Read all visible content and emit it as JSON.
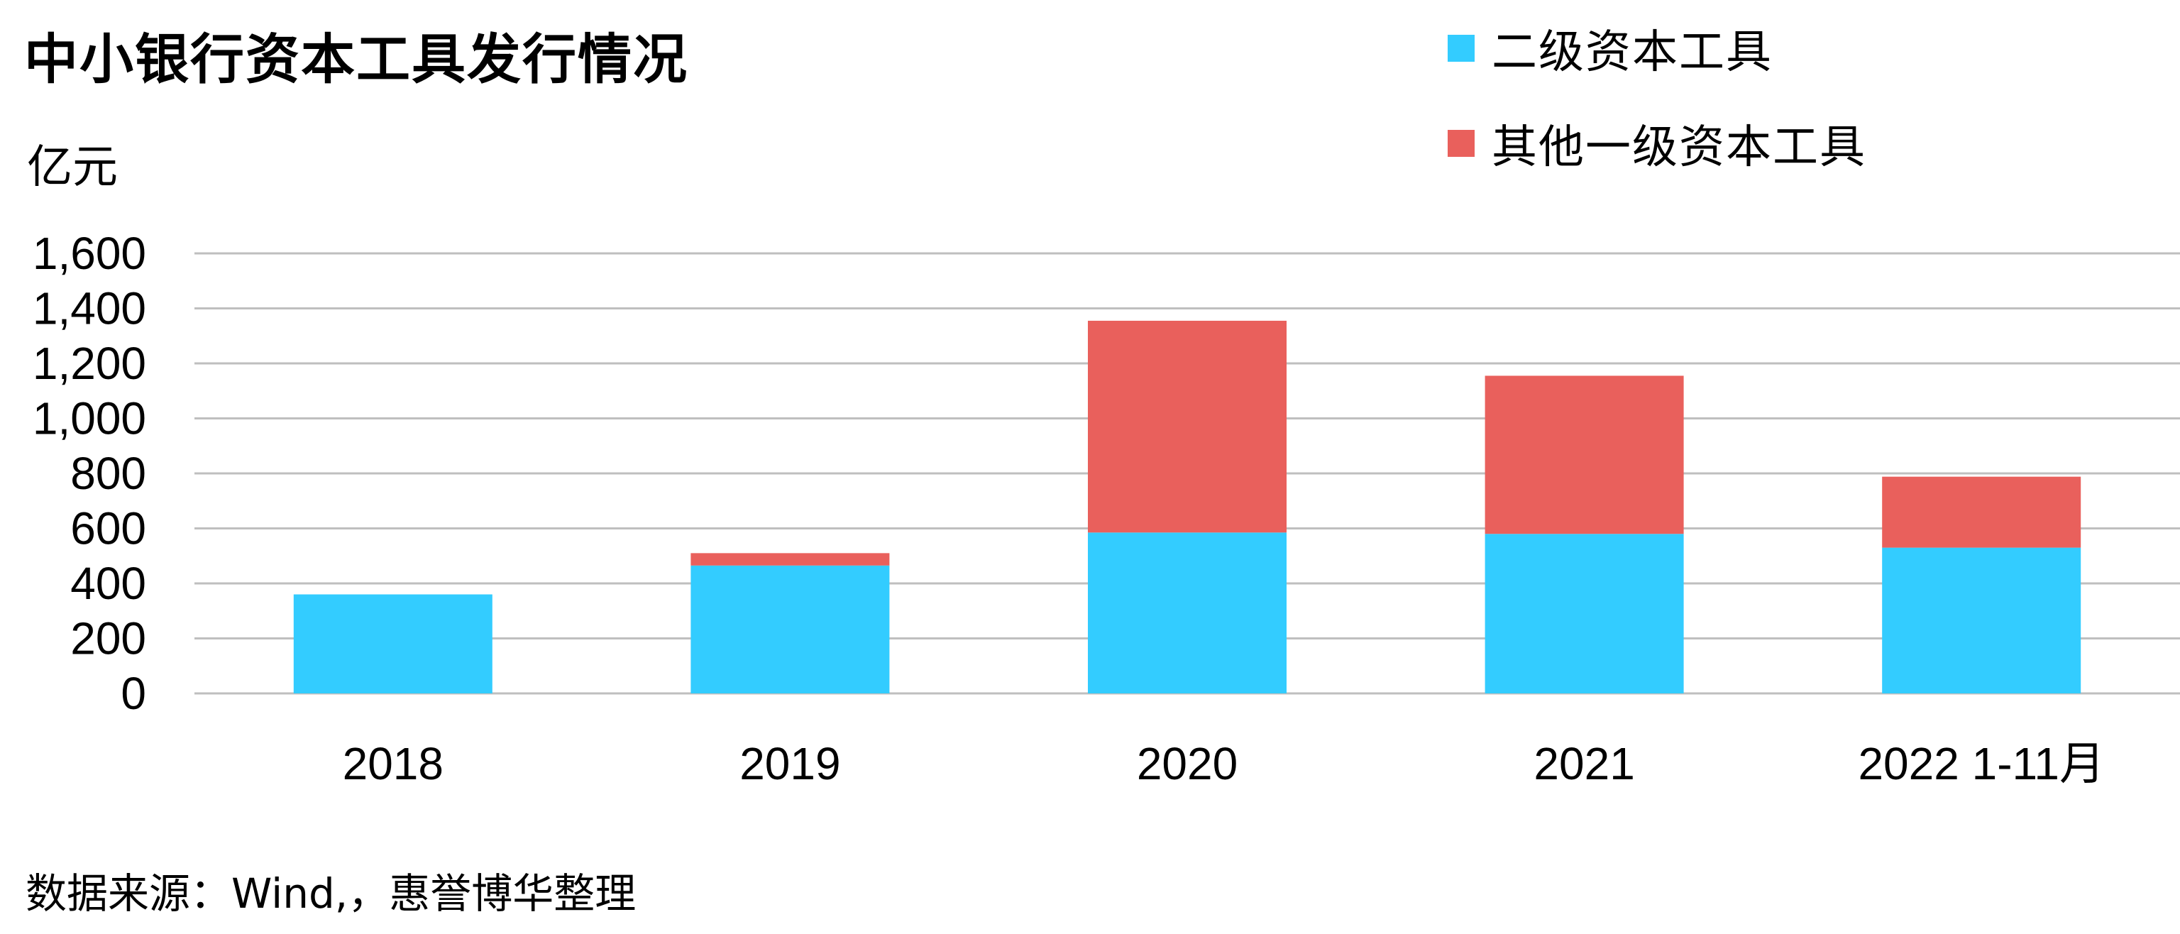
{
  "header": {
    "title": "中小银行资本工具发行情况",
    "unit": "亿元"
  },
  "legend": {
    "items": [
      {
        "label": "二级资本工具",
        "color": "#33CCFF"
      },
      {
        "label": "其他一级资本工具",
        "color": "#E9605C"
      }
    ]
  },
  "footer": {
    "source": "数据来源：Wind,，惠誉博华整理"
  },
  "colors": {
    "grid": "#BFBFBF",
    "axis": "#BFBFBF",
    "text": "#000000"
  },
  "chart_data": {
    "type": "bar",
    "stacked": true,
    "title": "中小银行资本工具发行情况",
    "ylabel": "亿元",
    "xlabel": "",
    "categories": [
      "2018",
      "2019",
      "2020",
      "2021",
      "2022 1-11月"
    ],
    "series": [
      {
        "name": "二级资本工具",
        "color": "#33CCFF",
        "values": [
          360,
          465,
          585,
          580,
          530
        ]
      },
      {
        "name": "其他一级资本工具",
        "color": "#E9605C",
        "values": [
          0,
          45,
          770,
          575,
          258
        ]
      }
    ],
    "ylim": [
      0,
      1600
    ],
    "yticks": [
      0,
      200,
      400,
      600,
      800,
      1000,
      1200,
      1400,
      1600
    ],
    "ytick_labels": [
      "0",
      "200",
      "400",
      "600",
      "800",
      "1,000",
      "1,200",
      "1,400",
      "1,600"
    ],
    "grid": true,
    "legend_position": "top-right"
  }
}
